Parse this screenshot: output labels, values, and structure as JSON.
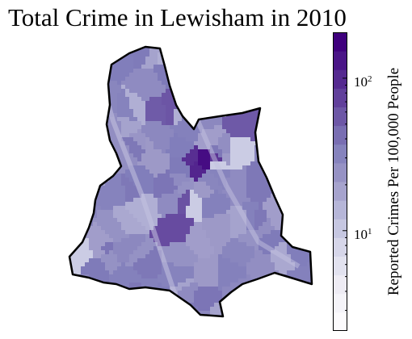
{
  "title": "Total Crime in Lewisham in 2010",
  "colorbar": {
    "label": "Reported Crimes Per 100,000 People",
    "scale": "log",
    "range": [
      2.2,
      200
    ],
    "ticks": [
      {
        "value": 10,
        "base": "10",
        "exp": "1"
      },
      {
        "value": 100,
        "base": "10",
        "exp": "2"
      }
    ],
    "palette": [
      "#fcfbfd",
      "#efedf5",
      "#dadaeb",
      "#bcbddc",
      "#9e9ac8",
      "#807dba",
      "#6a51a3",
      "#54278f",
      "#3f007d"
    ]
  },
  "map": {
    "region": "Lewisham",
    "year": "2010",
    "typical_value": 25,
    "hotspot_values": [
      180,
      140,
      90,
      70,
      60
    ]
  }
}
